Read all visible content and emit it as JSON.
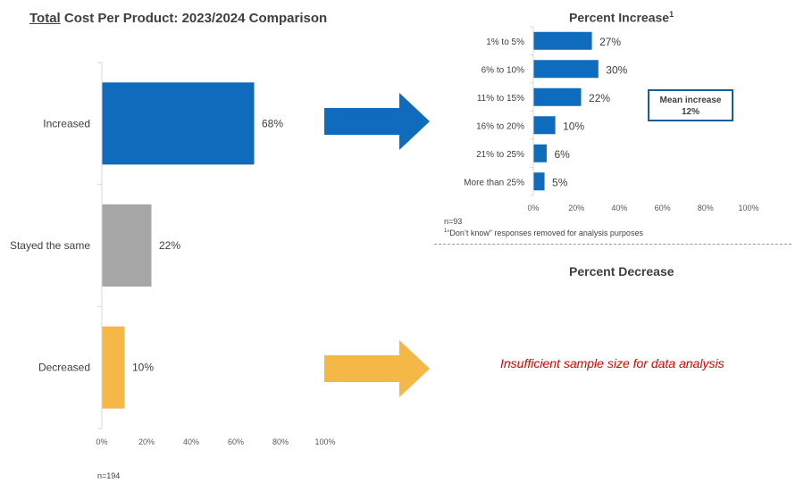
{
  "header": {
    "title_underlined": "Total",
    "title_rest": " Cost Per Product: 2023/2024 Comparison"
  },
  "chart_data": [
    {
      "type": "bar",
      "orientation": "horizontal",
      "title": "Total Cost Per Product: 2023/2024 Comparison",
      "categories": [
        "Increased",
        "Stayed the same",
        "Decreased"
      ],
      "values": [
        68,
        22,
        10
      ],
      "value_labels": [
        "68%",
        "22%",
        "10%"
      ],
      "colors": [
        "#0f6cbd",
        "#a6a6a6",
        "#f5b746"
      ],
      "xlim": [
        0,
        100
      ],
      "xticks": [
        "0%",
        "20%",
        "40%",
        "60%",
        "80%",
        "100%"
      ],
      "grid": false,
      "note": "n=194"
    },
    {
      "type": "bar",
      "orientation": "horizontal",
      "title": "Percent Increase",
      "title_superscript": "1",
      "categories": [
        "1% to 5%",
        "6% to 10%",
        "11% to 15%",
        "16% to 20%",
        "21% to 25%",
        "More than 25%"
      ],
      "values": [
        27,
        30,
        22,
        10,
        6,
        5
      ],
      "value_labels": [
        "27%",
        "30%",
        "22%",
        "10%",
        "6%",
        "5%"
      ],
      "color": "#0f6cbd",
      "xlim": [
        0,
        100
      ],
      "xticks": [
        "0%",
        "20%",
        "40%",
        "60%",
        "80%",
        "100%"
      ],
      "grid": false,
      "note": "n=93",
      "footnote_marker": "1",
      "footnote": "“Don’t know” responses removed for analysis purposes",
      "callout": {
        "line1": "Mean increase",
        "line2": "12%"
      }
    }
  ],
  "decrease_panel": {
    "title": "Percent Decrease",
    "message": "Insufficient sample size for data analysis"
  },
  "colors": {
    "blue_arrow": "#0f6cbd",
    "orange_arrow": "#f5b746",
    "callout_border": "#1a5c94",
    "message": "#e00000"
  }
}
